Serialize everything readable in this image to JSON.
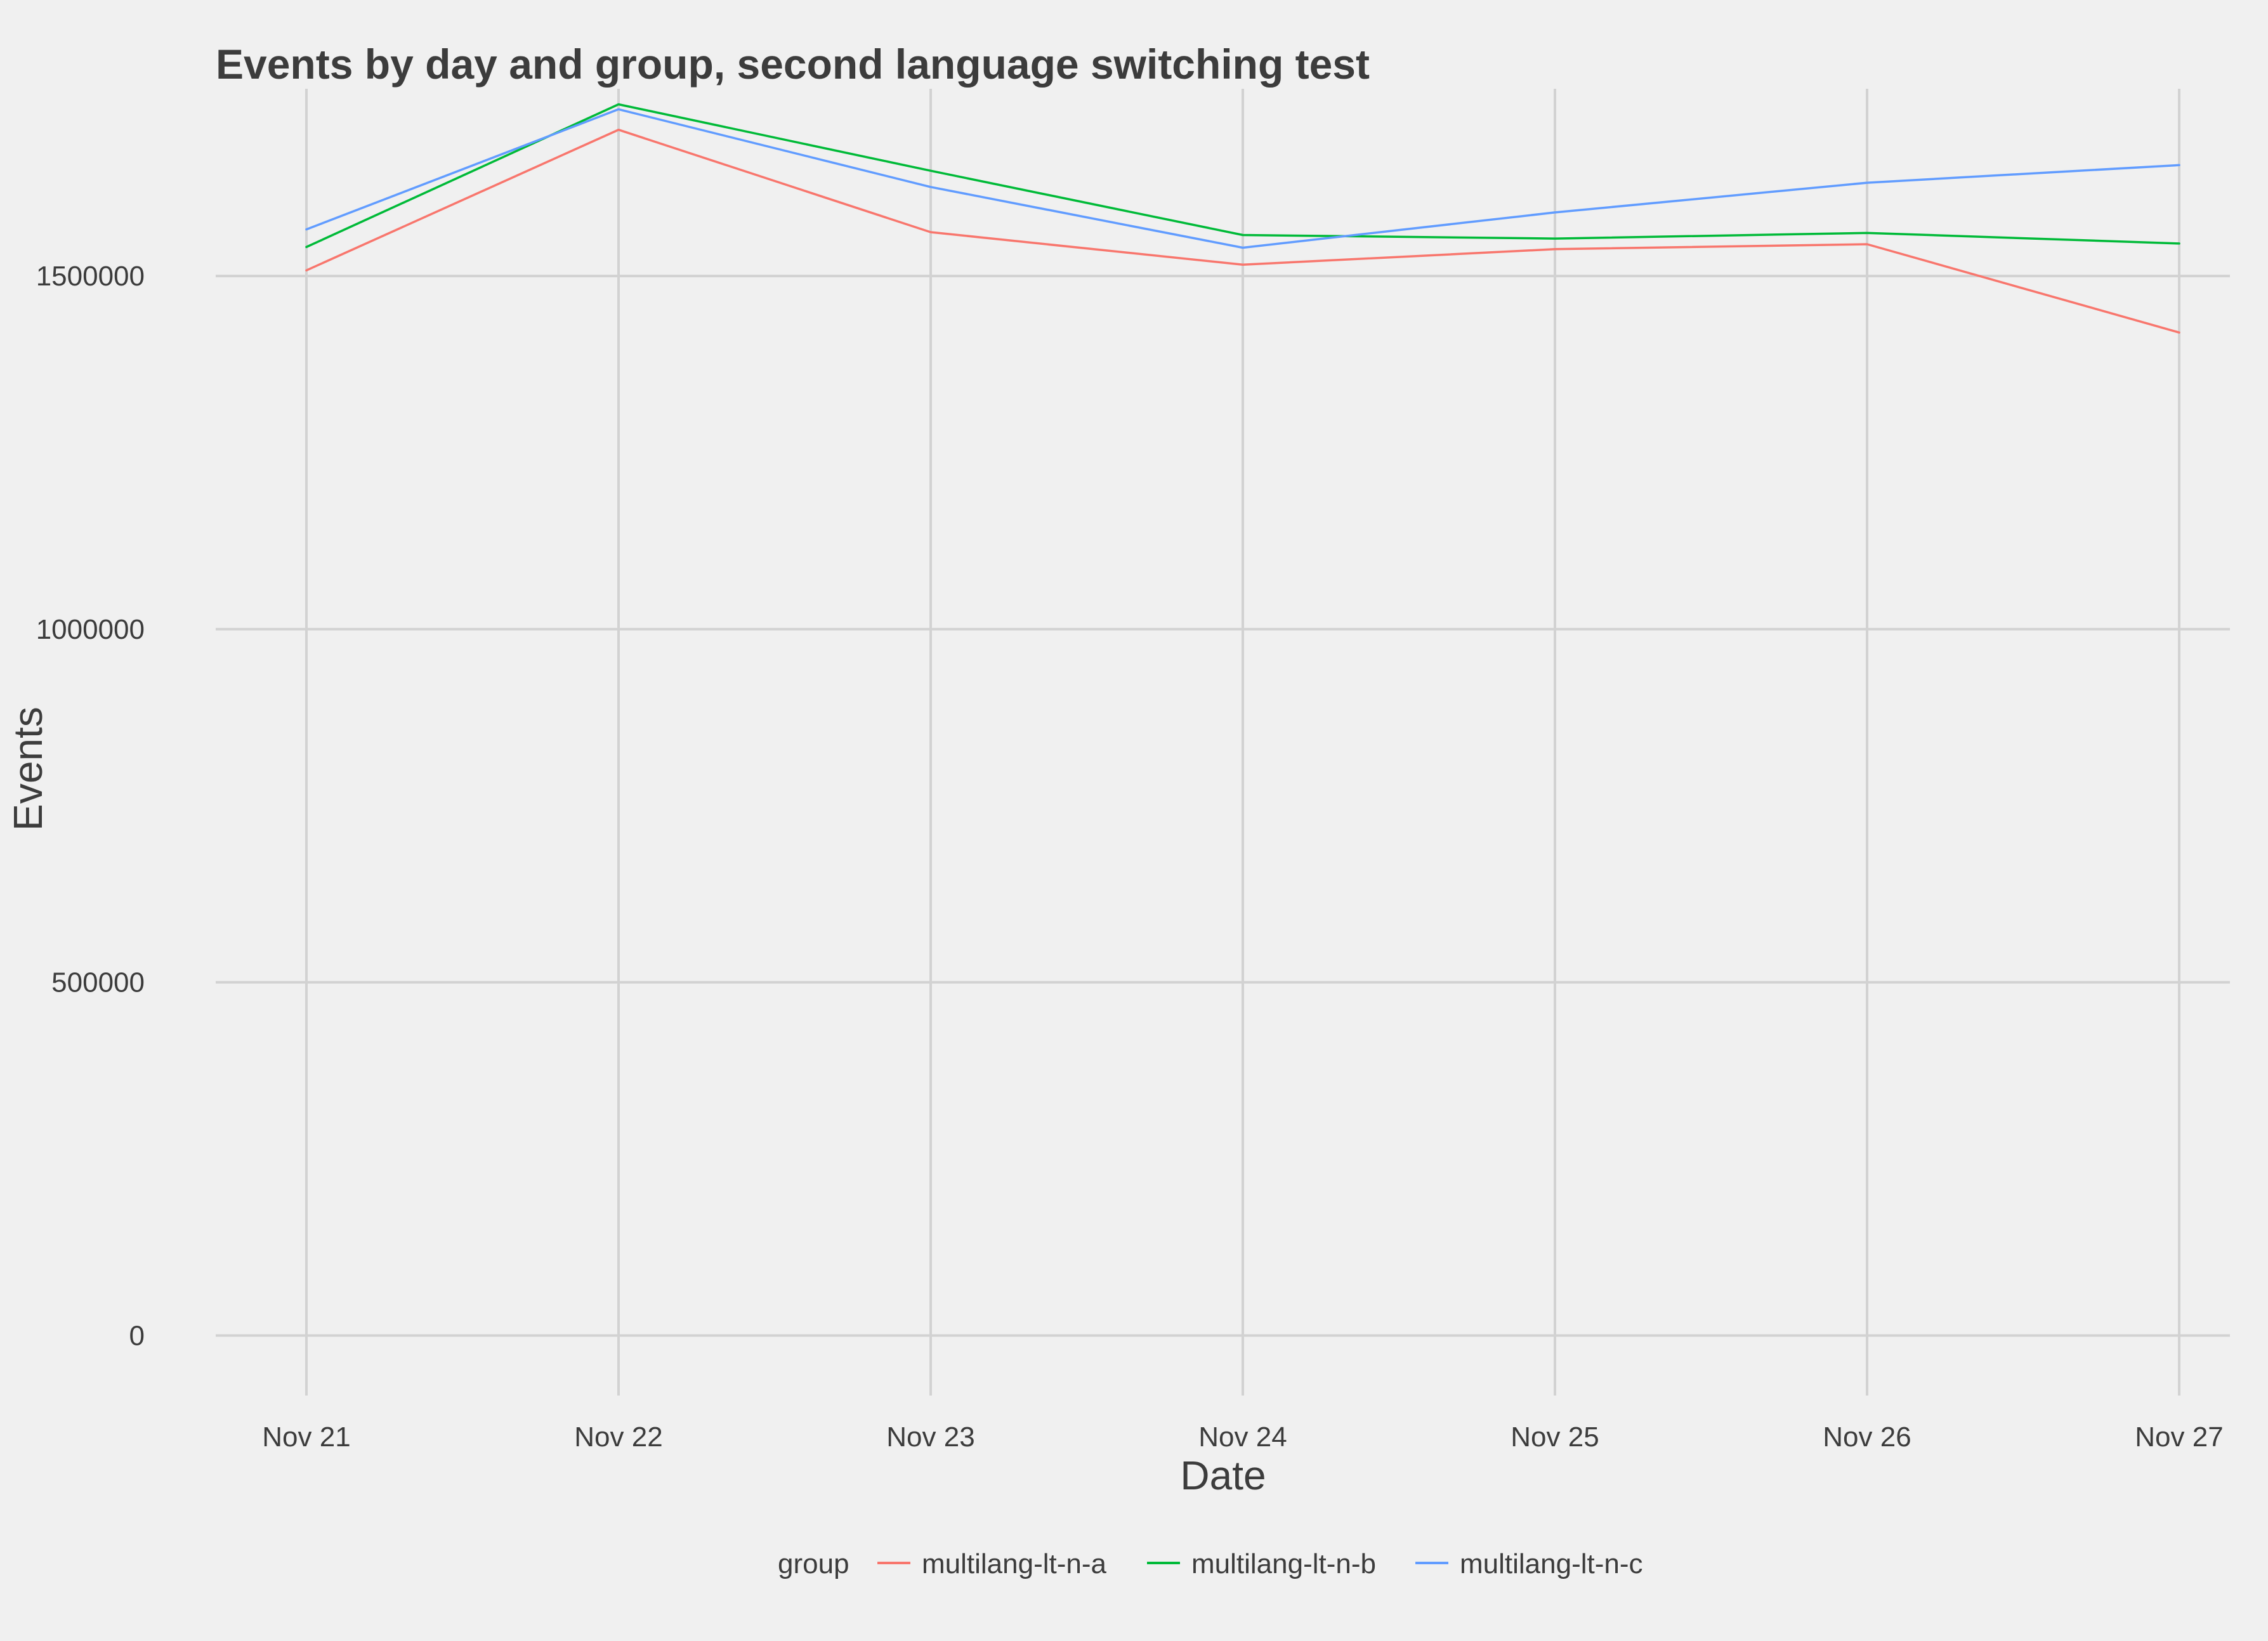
{
  "chart_data": {
    "type": "line",
    "title": "Events by day and group, second language switching test",
    "xlabel": "Date",
    "ylabel": "Events",
    "x": [
      "Nov 21",
      "Nov 22",
      "Nov 23",
      "Nov 24",
      "Nov 25",
      "Nov 26",
      "Nov 27"
    ],
    "ylim": [
      -85000,
      1765000
    ],
    "yticks": [
      0,
      500000,
      1000000,
      1500000
    ],
    "ytick_labels": [
      "0",
      "500000",
      "1000000",
      "1500000"
    ],
    "grid": true,
    "legend": {
      "title": "group",
      "position": "bottom"
    },
    "series": [
      {
        "name": "multilang-lt-n-a",
        "color": "#f8766d",
        "values": [
          1508000,
          1707000,
          1562000,
          1516000,
          1538000,
          1545000,
          1420000
        ]
      },
      {
        "name": "multilang-lt-n-b",
        "color": "#00ba38",
        "values": [
          1541000,
          1743000,
          1649000,
          1558000,
          1553000,
          1561000,
          1546000
        ]
      },
      {
        "name": "multilang-lt-n-c",
        "color": "#619cff",
        "values": [
          1566000,
          1736000,
          1626000,
          1540000,
          1590000,
          1632000,
          1657000
        ]
      }
    ]
  }
}
